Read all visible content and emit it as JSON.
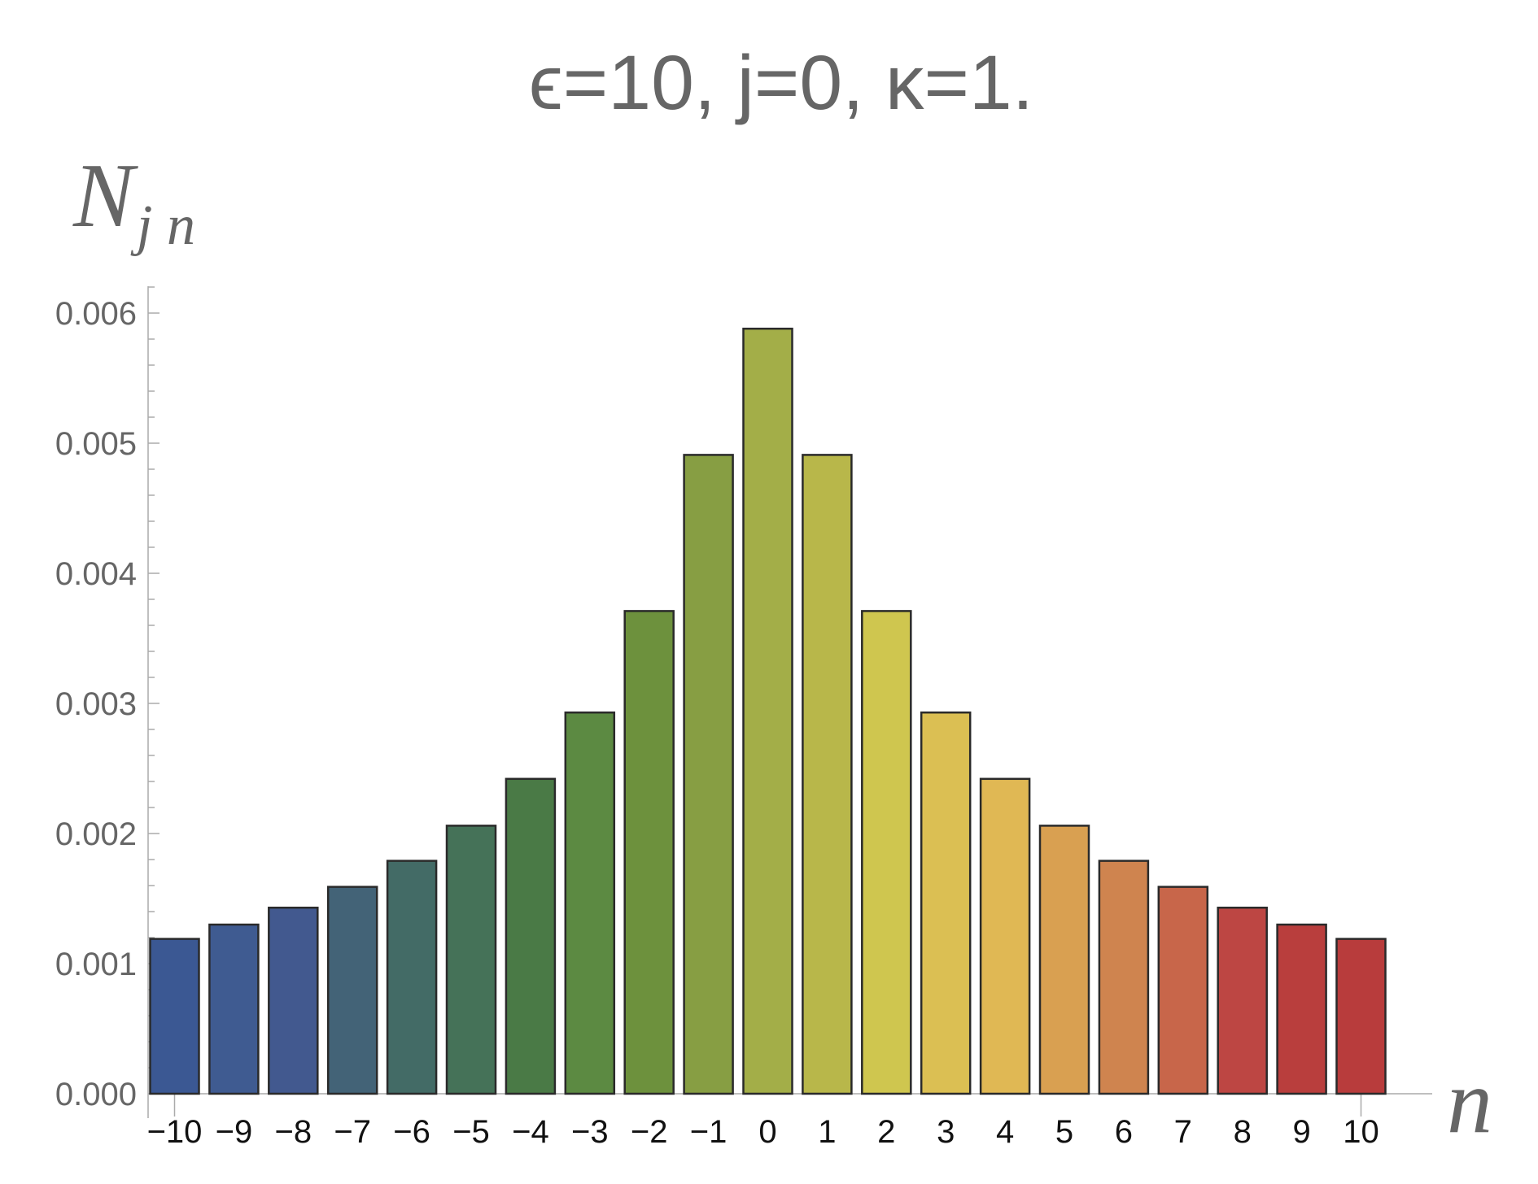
{
  "chart_data": {
    "type": "bar",
    "title": "ϵ=10, j=0, κ=1.",
    "ylabel": {
      "main": "N",
      "sub": "j n"
    },
    "xlabel": "n",
    "categories": [
      "-10",
      "-9",
      "-8",
      "-7",
      "-6",
      "-5",
      "-4",
      "-3",
      "-2",
      "-1",
      "0",
      "1",
      "2",
      "3",
      "4",
      "5",
      "6",
      "7",
      "8",
      "9",
      "10"
    ],
    "category_labels": [
      "−10",
      "−9",
      "−8",
      "−7",
      "−6",
      "−5",
      "−4",
      "−3",
      "−2",
      "−1",
      "0",
      "1",
      "2",
      "3",
      "4",
      "5",
      "6",
      "7",
      "8",
      "9",
      "10"
    ],
    "values": [
      0.00119,
      0.0013,
      0.00143,
      0.00159,
      0.00179,
      0.00206,
      0.00242,
      0.00293,
      0.00371,
      0.00491,
      0.00588,
      0.00491,
      0.00371,
      0.00293,
      0.00242,
      0.00206,
      0.00179,
      0.00159,
      0.00143,
      0.0013,
      0.00119
    ],
    "colors": [
      "#3b5893",
      "#3f5b91",
      "#42598f",
      "#436377",
      "#436b66",
      "#457258",
      "#4a7a46",
      "#5c8a42",
      "#6d913d",
      "#879e43",
      "#a3ae48",
      "#b8b74a",
      "#cfc64f",
      "#dbbf53",
      "#e0b854",
      "#d9a051",
      "#cf844f",
      "#c8664a",
      "#bd4643",
      "#b93e3d",
      "#b83c3c"
    ],
    "yticks": [
      "0.000",
      "0.001",
      "0.002",
      "0.003",
      "0.004",
      "0.005",
      "0.006"
    ],
    "ylim": [
      0,
      0.0062
    ],
    "grid": false,
    "legend": "none"
  }
}
